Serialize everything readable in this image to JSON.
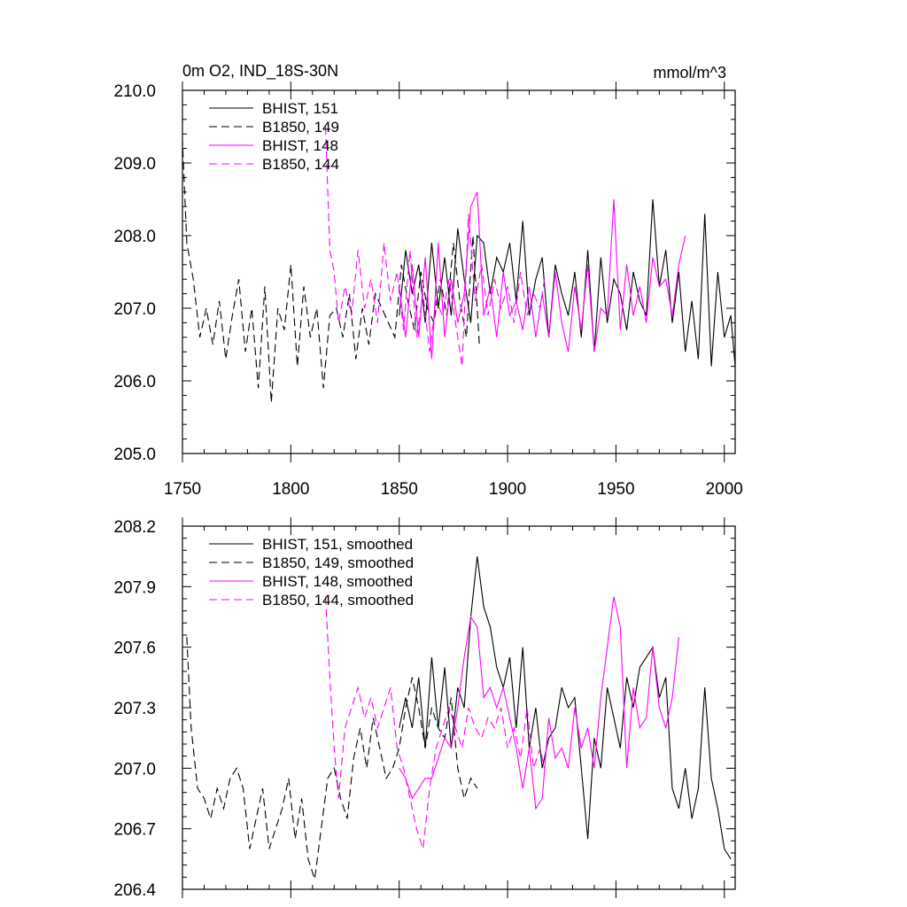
{
  "chart_data": [
    {
      "type": "line",
      "title": "0m O2, IND_18S-30N",
      "units": "mmol/m^3",
      "xlabel": "",
      "ylabel": "",
      "xlim": [
        1750,
        2005
      ],
      "ylim": [
        205.0,
        210.0
      ],
      "xticks": [
        "1750",
        "1800",
        "1850",
        "1900",
        "1950",
        "2000"
      ],
      "yticks": [
        "205.0",
        "206.0",
        "207.0",
        "208.0",
        "209.0",
        "210.0"
      ],
      "grid": false,
      "legend_position": "top-left",
      "series": [
        {
          "name": "BHIST, 151",
          "color": "#000000",
          "dash": "solid",
          "x": [
            1850,
            1853,
            1856,
            1859,
            1862,
            1865,
            1868,
            1871,
            1874,
            1877,
            1880,
            1883,
            1886,
            1889,
            1892,
            1895,
            1898,
            1901,
            1904,
            1907,
            1910,
            1913,
            1916,
            1919,
            1922,
            1925,
            1928,
            1931,
            1934,
            1937,
            1940,
            1943,
            1946,
            1949,
            1952,
            1955,
            1958,
            1961,
            1964,
            1967,
            1970,
            1973,
            1976,
            1979,
            1982,
            1985,
            1988,
            1991,
            1994,
            1997,
            2000,
            2003,
            2005
          ],
          "y": [
            206.9,
            207.8,
            207.2,
            207.6,
            206.8,
            207.9,
            207.0,
            207.7,
            206.9,
            208.1,
            207.4,
            206.8,
            208.0,
            207.9,
            207.2,
            207.7,
            207.5,
            207.9,
            207.1,
            208.2,
            206.9,
            207.4,
            207.7,
            206.6,
            207.6,
            207.2,
            206.9,
            207.5,
            206.6,
            207.8,
            206.4,
            207.7,
            206.8,
            207.4,
            207.2,
            206.7,
            207.5,
            207.1,
            206.9,
            208.5,
            207.3,
            207.8,
            206.8,
            207.5,
            206.4,
            207.1,
            206.3,
            208.3,
            206.2,
            207.5,
            206.6,
            206.9,
            206.2
          ]
        },
        {
          "name": "B1850, 149",
          "color": "#000000",
          "dash": "dashed",
          "x": [
            1749,
            1750,
            1752,
            1755,
            1758,
            1761,
            1764,
            1767,
            1770,
            1773,
            1776,
            1779,
            1782,
            1785,
            1788,
            1791,
            1794,
            1797,
            1800,
            1803,
            1806,
            1809,
            1812,
            1815,
            1818,
            1821,
            1824,
            1827,
            1830,
            1833,
            1836,
            1839,
            1842,
            1845,
            1848,
            1851,
            1854,
            1857,
            1860,
            1863,
            1866,
            1869,
            1872,
            1875,
            1878,
            1881,
            1884,
            1887
          ],
          "y": [
            208.9,
            209.3,
            207.9,
            207.4,
            206.6,
            207.0,
            206.5,
            207.1,
            206.3,
            206.9,
            207.4,
            206.4,
            207.0,
            205.9,
            207.3,
            205.7,
            207.0,
            206.7,
            207.6,
            206.2,
            207.3,
            206.6,
            207.0,
            205.9,
            206.9,
            207.0,
            206.6,
            207.2,
            206.3,
            207.0,
            206.5,
            207.2,
            207.0,
            206.8,
            206.6,
            207.6,
            207.1,
            206.7,
            207.5,
            207.0,
            206.8,
            207.4,
            206.9,
            207.9,
            207.1,
            206.6,
            208.0,
            206.5
          ]
        },
        {
          "name": "BHIST, 148",
          "color": "#ff00ff",
          "dash": "solid",
          "x": [
            1850,
            1853,
            1856,
            1859,
            1862,
            1865,
            1868,
            1871,
            1874,
            1877,
            1880,
            1883,
            1886,
            1889,
            1892,
            1895,
            1898,
            1901,
            1904,
            1907,
            1910,
            1913,
            1916,
            1919,
            1922,
            1925,
            1928,
            1931,
            1934,
            1937,
            1940,
            1943,
            1946,
            1949,
            1952,
            1955,
            1958,
            1961,
            1964,
            1967,
            1970,
            1973,
            1976,
            1979,
            1982
          ],
          "y": [
            207.3,
            206.6,
            207.6,
            206.6,
            207.7,
            206.3,
            207.9,
            206.6,
            207.4,
            206.8,
            207.2,
            208.4,
            208.6,
            206.9,
            207.3,
            206.6,
            207.5,
            206.9,
            207.1,
            206.7,
            207.3,
            206.6,
            207.2,
            206.6,
            207.5,
            206.8,
            206.4,
            207.3,
            206.7,
            207.6,
            206.4,
            207.0,
            206.9,
            208.5,
            206.7,
            207.6,
            206.9,
            207.3,
            206.8,
            207.7,
            207.3,
            207.4,
            206.9,
            207.6,
            208.0
          ]
        },
        {
          "name": "B1850, 144",
          "color": "#ff00ff",
          "dash": "dashed",
          "x": [
            1816,
            1818,
            1820,
            1822,
            1825,
            1828,
            1831,
            1834,
            1837,
            1840,
            1843,
            1846,
            1849,
            1852,
            1855,
            1858,
            1861,
            1864,
            1867,
            1870,
            1873,
            1876,
            1879,
            1882,
            1885,
            1888,
            1891,
            1894,
            1897,
            1900,
            1903,
            1906,
            1909,
            1912,
            1915,
            1917
          ],
          "y": [
            209.5,
            207.8,
            207.5,
            206.8,
            207.3,
            206.9,
            207.8,
            207.0,
            207.4,
            206.8,
            207.9,
            207.1,
            207.5,
            206.7,
            207.8,
            206.6,
            207.2,
            206.4,
            207.1,
            206.9,
            207.4,
            206.8,
            206.2,
            208.3,
            207.1,
            207.6,
            206.9,
            207.4,
            207.0,
            207.3,
            206.8,
            207.5,
            206.9,
            207.2,
            207.0,
            207.4
          ]
        }
      ]
    },
    {
      "type": "line",
      "title": "",
      "xlabel": "",
      "ylabel": "",
      "xlim": [
        1750,
        2005
      ],
      "ylim": [
        206.4,
        208.2
      ],
      "yticks": [
        "206.4",
        "206.7",
        "207.0",
        "207.3",
        "207.6",
        "207.9",
        "208.2"
      ],
      "grid": false,
      "legend_position": "top-left",
      "series": [
        {
          "name": "BHIST, 151, smoothed",
          "color": "#000000",
          "dash": "solid",
          "x": [
            1850,
            1853,
            1856,
            1859,
            1862,
            1865,
            1868,
            1871,
            1874,
            1877,
            1880,
            1883,
            1886,
            1889,
            1892,
            1895,
            1898,
            1901,
            1904,
            1907,
            1910,
            1913,
            1916,
            1919,
            1922,
            1925,
            1928,
            1931,
            1934,
            1937,
            1940,
            1943,
            1946,
            1949,
            1952,
            1955,
            1958,
            1961,
            1964,
            1967,
            1970,
            1973,
            1976,
            1979,
            1982,
            1985,
            1988,
            1991,
            1994,
            1997,
            2000,
            2003
          ],
          "y": [
            207.2,
            207.35,
            207.2,
            207.45,
            207.1,
            207.55,
            207.2,
            207.5,
            207.1,
            207.4,
            207.3,
            207.75,
            208.05,
            207.8,
            207.7,
            207.5,
            207.4,
            207.55,
            207.2,
            207.6,
            207.1,
            207.3,
            207.0,
            207.15,
            207.2,
            207.4,
            207.3,
            207.35,
            207.0,
            206.65,
            207.15,
            207.0,
            207.4,
            207.25,
            207.1,
            207.45,
            207.3,
            207.5,
            207.55,
            207.6,
            207.35,
            207.45,
            206.9,
            206.8,
            207.0,
            206.75,
            206.9,
            207.4,
            206.95,
            206.8,
            206.6,
            206.55
          ]
        },
        {
          "name": "B1850, 149, smoothed",
          "color": "#000000",
          "dash": "dashed",
          "x": [
            1752,
            1754,
            1757,
            1760,
            1763,
            1766,
            1769,
            1772,
            1775,
            1778,
            1781,
            1784,
            1787,
            1790,
            1793,
            1796,
            1799,
            1802,
            1805,
            1808,
            1811,
            1814,
            1817,
            1820,
            1823,
            1826,
            1829,
            1832,
            1835,
            1838,
            1841,
            1844,
            1847,
            1850,
            1853,
            1856,
            1859,
            1862,
            1865,
            1868,
            1871,
            1874,
            1877,
            1880,
            1883,
            1886
          ],
          "y": [
            207.65,
            207.2,
            206.9,
            206.85,
            206.75,
            206.9,
            206.8,
            206.95,
            207.0,
            206.9,
            206.6,
            206.75,
            206.9,
            206.6,
            206.7,
            206.8,
            206.95,
            206.65,
            206.85,
            206.55,
            206.45,
            206.7,
            206.95,
            207.0,
            206.85,
            206.75,
            207.05,
            207.2,
            207.0,
            207.25,
            207.1,
            206.95,
            207.0,
            207.1,
            207.3,
            207.45,
            207.3,
            207.1,
            207.3,
            207.2,
            207.15,
            207.35,
            207.0,
            206.85,
            206.95,
            206.9
          ]
        },
        {
          "name": "BHIST, 148, smoothed",
          "color": "#ff00ff",
          "dash": "solid",
          "x": [
            1850,
            1853,
            1856,
            1859,
            1862,
            1865,
            1868,
            1871,
            1874,
            1877,
            1880,
            1883,
            1886,
            1889,
            1892,
            1895,
            1898,
            1901,
            1904,
            1907,
            1910,
            1913,
            1916,
            1919,
            1922,
            1925,
            1928,
            1931,
            1934,
            1937,
            1940,
            1943,
            1946,
            1949,
            1952,
            1955,
            1958,
            1961,
            1964,
            1967,
            1970,
            1973,
            1976,
            1979
          ],
          "y": [
            207.0,
            206.95,
            206.85,
            206.9,
            206.95,
            206.95,
            207.05,
            207.15,
            207.1,
            207.3,
            207.55,
            207.75,
            207.7,
            207.35,
            207.4,
            207.3,
            207.4,
            207.25,
            207.1,
            206.9,
            207.1,
            206.8,
            206.85,
            207.25,
            207.05,
            207.1,
            207.0,
            207.3,
            207.1,
            207.2,
            207.0,
            207.35,
            207.6,
            207.85,
            207.7,
            207.0,
            207.4,
            207.2,
            207.25,
            207.6,
            207.3,
            207.2,
            207.35,
            207.65
          ]
        },
        {
          "name": "B1850, 144, smoothed",
          "color": "#ff00ff",
          "dash": "dashed",
          "x": [
            1816,
            1818,
            1820,
            1822,
            1825,
            1828,
            1831,
            1834,
            1837,
            1840,
            1843,
            1846,
            1849,
            1852,
            1855,
            1858,
            1861,
            1864,
            1867,
            1870,
            1873,
            1876,
            1879,
            1882,
            1885,
            1888,
            1891,
            1894,
            1897,
            1900,
            1903,
            1906,
            1909,
            1912,
            1915,
            1917
          ],
          "y": [
            207.85,
            207.45,
            207.1,
            206.85,
            207.2,
            207.3,
            207.4,
            207.25,
            207.35,
            207.2,
            207.3,
            207.4,
            207.1,
            207.0,
            206.85,
            206.7,
            206.6,
            206.9,
            207.1,
            207.2,
            207.3,
            207.2,
            207.1,
            207.3,
            207.2,
            207.15,
            207.25,
            207.2,
            207.3,
            207.1,
            207.2,
            207.05,
            207.3,
            207.0,
            207.1,
            207.0
          ]
        }
      ]
    }
  ]
}
